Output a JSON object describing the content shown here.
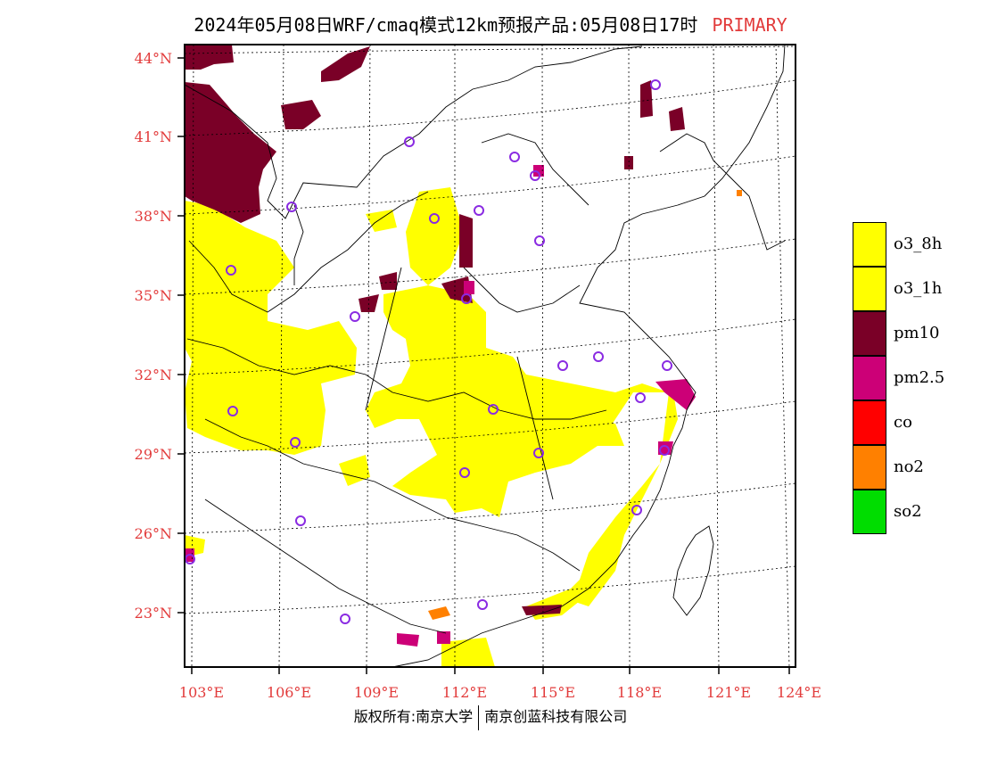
{
  "title": {
    "main": "2024年05月08日WRF/cmaq模式12km预报产品:05月08日17时",
    "tag": "PRIMARY"
  },
  "footer": {
    "copyright": "版权所有:南京大学",
    "company": "南京创蓝科技有限公司"
  },
  "colors": {
    "o3_8h": "#ffff00",
    "o3_1h": "#ffff00",
    "pm10": "#7a0027",
    "pm2_5": "#cc0077",
    "co": "#ff0000",
    "no2": "#ff8000",
    "so2": "#00dd00",
    "axis_label": "#e23b3b",
    "station_marker": "#8a2be2"
  },
  "legend": [
    {
      "key": "o3_8h",
      "label": "o3_8h"
    },
    {
      "key": "o3_1h",
      "label": "o3_1h"
    },
    {
      "key": "pm10",
      "label": "pm10"
    },
    {
      "key": "pm2_5",
      "label": "pm2.5"
    },
    {
      "key": "co",
      "label": "co"
    },
    {
      "key": "no2",
      "label": "no2"
    },
    {
      "key": "so2",
      "label": "so2"
    }
  ],
  "axes": {
    "lon_ticks": [
      "103°E",
      "106°E",
      "109°E",
      "112°E",
      "115°E",
      "118°E",
      "121°E",
      "124°E"
    ],
    "lat_ticks": [
      "44°N",
      "41°N",
      "38°N",
      "35°N",
      "32°N",
      "29°N",
      "26°N",
      "23°N"
    ]
  },
  "map_extent": {
    "lon_min": 102.7,
    "lon_max": 124.0,
    "lat_min": 21.0,
    "lat_max": 44.3
  }
}
